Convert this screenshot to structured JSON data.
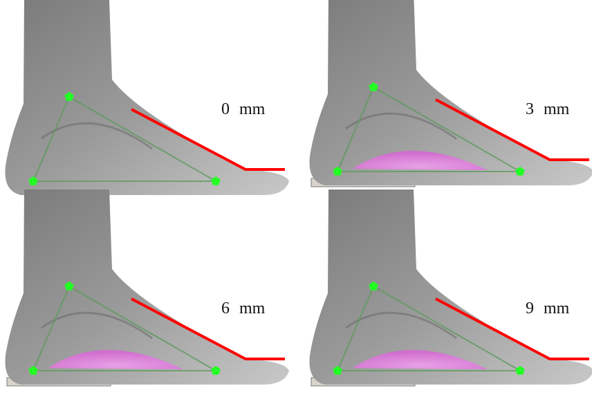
{
  "panels": [
    {
      "label": "0 mm"
    },
    {
      "label": "3 mm"
    },
    {
      "label": "6 mm"
    },
    {
      "label": "9 mm"
    }
  ]
}
